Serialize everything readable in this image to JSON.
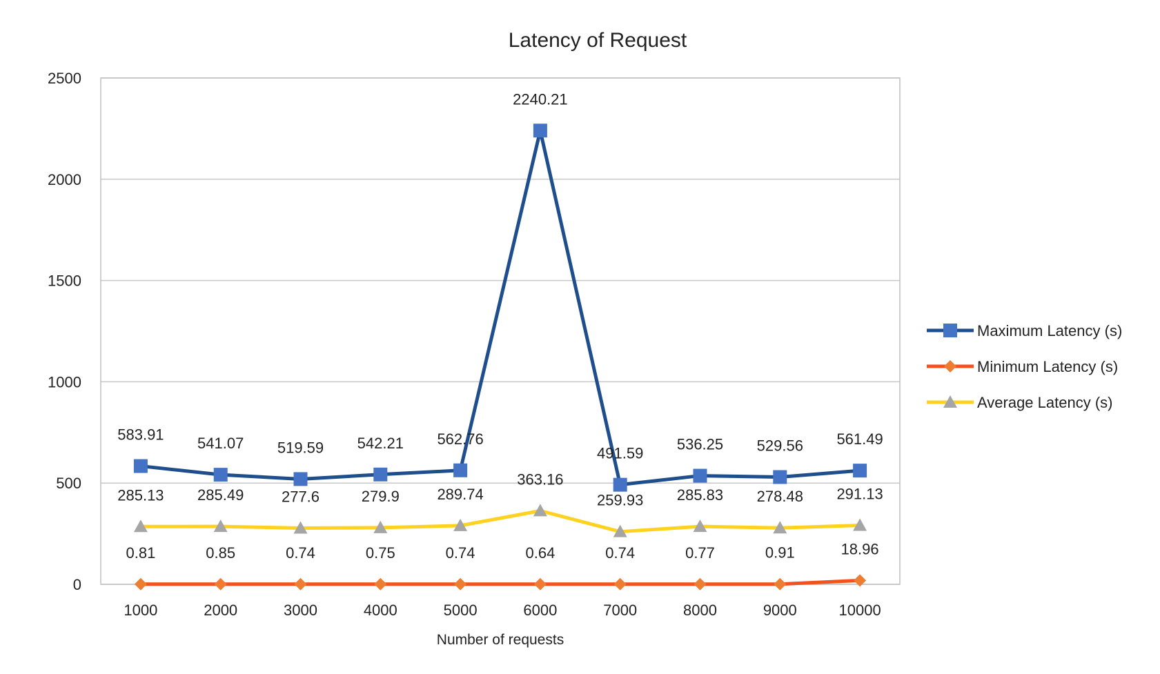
{
  "chart_data": {
    "type": "line",
    "title": "Latency of Request",
    "xlabel": "Number of requests",
    "ylabel": "",
    "categories": [
      "1000",
      "2000",
      "3000",
      "4000",
      "5000",
      "6000",
      "7000",
      "8000",
      "9000",
      "10000"
    ],
    "ylim": [
      0,
      2500
    ],
    "yticks": [
      0,
      500,
      1000,
      1500,
      2000,
      2500
    ],
    "grid": true,
    "legend_position": "right",
    "series": [
      {
        "name": "Maximum Latency (s)",
        "color": "#1f4e8c",
        "marker_color": "#4472c4",
        "marker": "square",
        "values": [
          583.91,
          541.07,
          519.59,
          542.21,
          562.76,
          2240.21,
          491.59,
          536.25,
          529.56,
          561.49
        ],
        "labels": [
          "583.91",
          "541.07",
          "519.59",
          "542.21",
          "562.76",
          "2240.21",
          "491.59",
          "536.25",
          "529.56",
          "561.49"
        ]
      },
      {
        "name": "Minimum Latency (s)",
        "color": "#f4511e",
        "marker_color": "#ed7d31",
        "marker": "diamond",
        "values": [
          0.81,
          0.85,
          0.74,
          0.75,
          0.74,
          0.64,
          0.74,
          0.77,
          0.91,
          18.96
        ],
        "labels": [
          "0.81",
          "0.85",
          "0.74",
          "0.75",
          "0.74",
          "0.64",
          "0.74",
          "0.77",
          "0.91",
          "18.96"
        ]
      },
      {
        "name": "Average Latency (s)",
        "color": "#ffd21f",
        "marker_color": "#a5a5a5",
        "marker": "triangle",
        "values": [
          285.13,
          285.49,
          277.6,
          279.9,
          289.74,
          363.16,
          259.93,
          285.83,
          278.48,
          291.13
        ],
        "labels": [
          "285.13",
          "285.49",
          "277.6",
          "279.9",
          "289.74",
          "363.16",
          "259.93",
          "285.83",
          "278.48",
          "291.13"
        ]
      }
    ]
  }
}
